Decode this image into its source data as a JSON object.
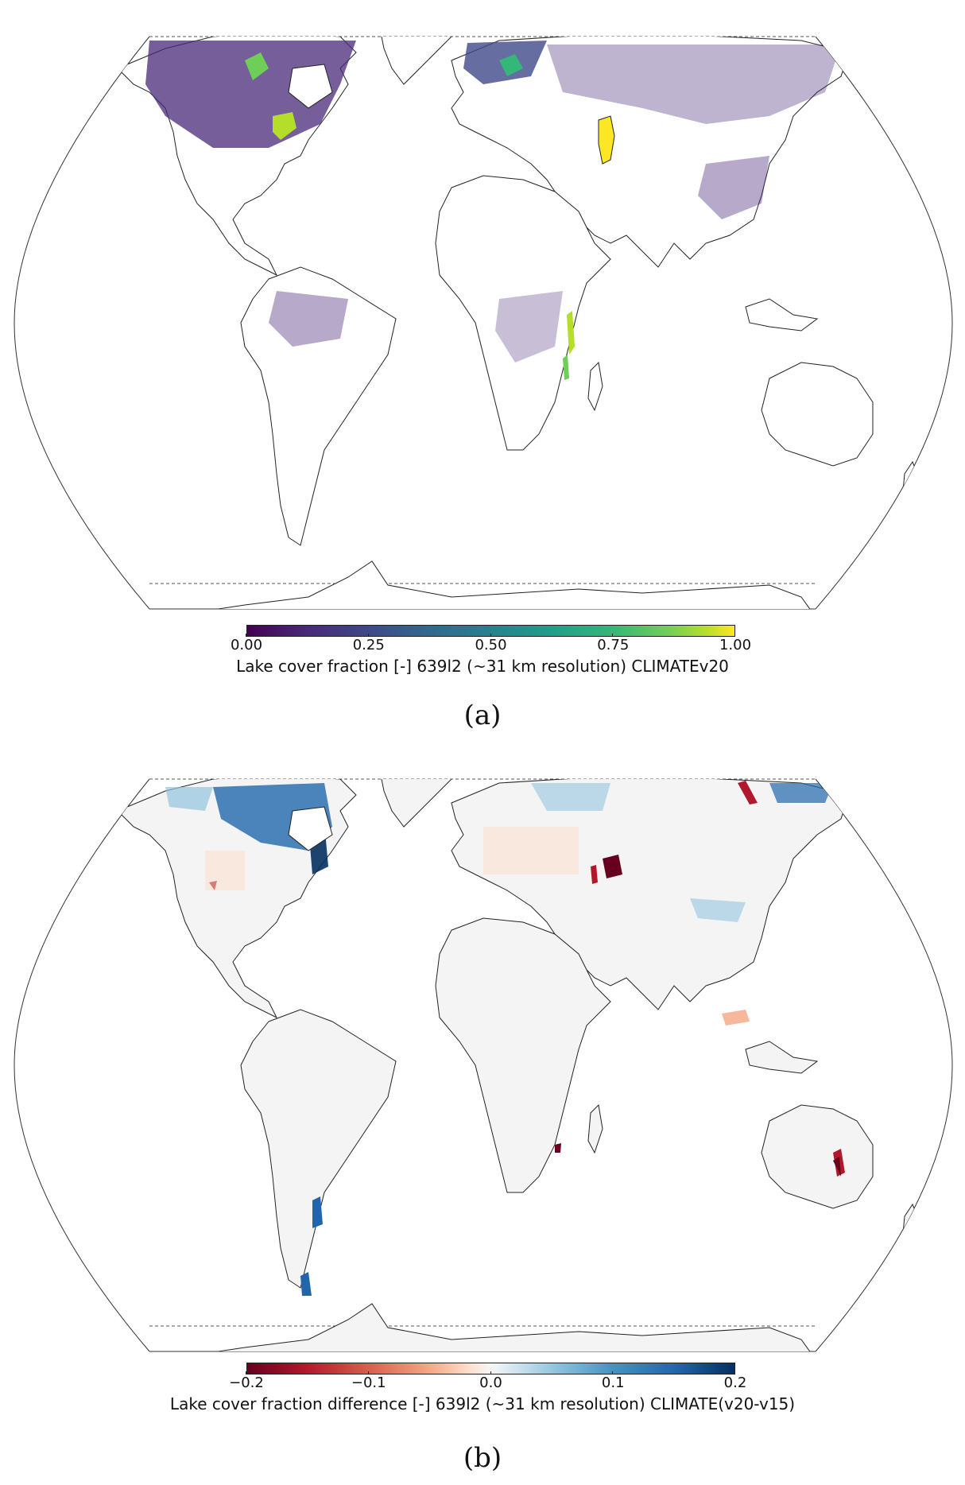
{
  "panel_a": {
    "caption": "(a)",
    "colorbar": {
      "colormap": "viridis",
      "label": "Lake cover fraction [-] 639l2 (~31 km resolution) CLIMATEv20",
      "ticks": [
        "0.00",
        "0.25",
        "0.50",
        "0.75",
        "1.00"
      ],
      "range": [
        0.0,
        1.0
      ]
    },
    "colors": {
      "low": "#440154",
      "mid": "#26828e",
      "high": "#fde725"
    }
  },
  "panel_b": {
    "caption": "(b)",
    "colorbar": {
      "colormap": "RdBu",
      "label": "Lake cover fraction difference [-] 639l2 (~31 km resolution) CLIMATE(v20-v15)",
      "ticks": [
        "−0.2",
        "−0.1",
        "0.0",
        "0.1",
        "0.2"
      ],
      "range": [
        -0.2,
        0.2
      ]
    },
    "colors": {
      "negative": "#67001f",
      "zero": "#f7f7f7",
      "positive": "#053061"
    }
  }
}
